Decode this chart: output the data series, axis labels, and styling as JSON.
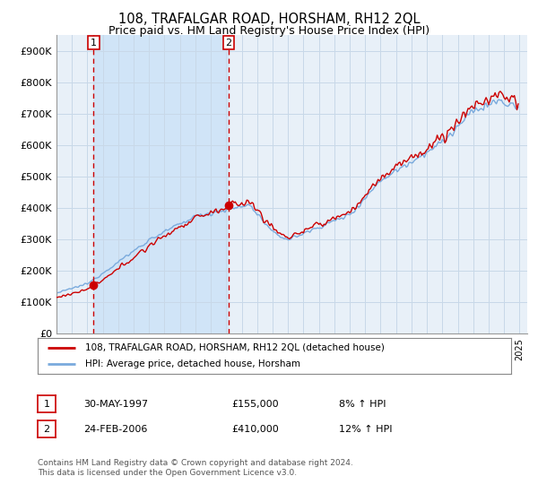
{
  "title": "108, TRAFALGAR ROAD, HORSHAM, RH12 2QL",
  "subtitle": "Price paid vs. HM Land Registry's House Price Index (HPI)",
  "ylim": [
    0,
    950000
  ],
  "yticks": [
    0,
    100000,
    200000,
    300000,
    400000,
    500000,
    600000,
    700000,
    800000,
    900000
  ],
  "ytick_labels": [
    "£0",
    "£100K",
    "£200K",
    "£300K",
    "£400K",
    "£500K",
    "£600K",
    "£700K",
    "£800K",
    "£900K"
  ],
  "xlim_start": 1995,
  "xlim_end": 2025.5,
  "sale1_date": 1997.41,
  "sale1_price": 155000,
  "sale1_label": "1",
  "sale2_date": 2006.15,
  "sale2_price": 410000,
  "sale2_label": "2",
  "legend_line1": "108, TRAFALGAR ROAD, HORSHAM, RH12 2QL (detached house)",
  "legend_line2": "HPI: Average price, detached house, Horsham",
  "table_row1": [
    "1",
    "30-MAY-1997",
    "£155,000",
    "8% ↑ HPI"
  ],
  "table_row2": [
    "2",
    "24-FEB-2006",
    "£410,000",
    "12% ↑ HPI"
  ],
  "footer": "Contains HM Land Registry data © Crown copyright and database right 2024.\nThis data is licensed under the Open Government Licence v3.0.",
  "line_color_red": "#cc0000",
  "line_color_blue": "#7aaadd",
  "background_plot": "#e8f0f8",
  "background_shaded": "#d0e4f7",
  "grid_color": "#c8d8e8",
  "vline_color": "#cc0000",
  "title_fontsize": 10.5,
  "subtitle_fontsize": 9
}
